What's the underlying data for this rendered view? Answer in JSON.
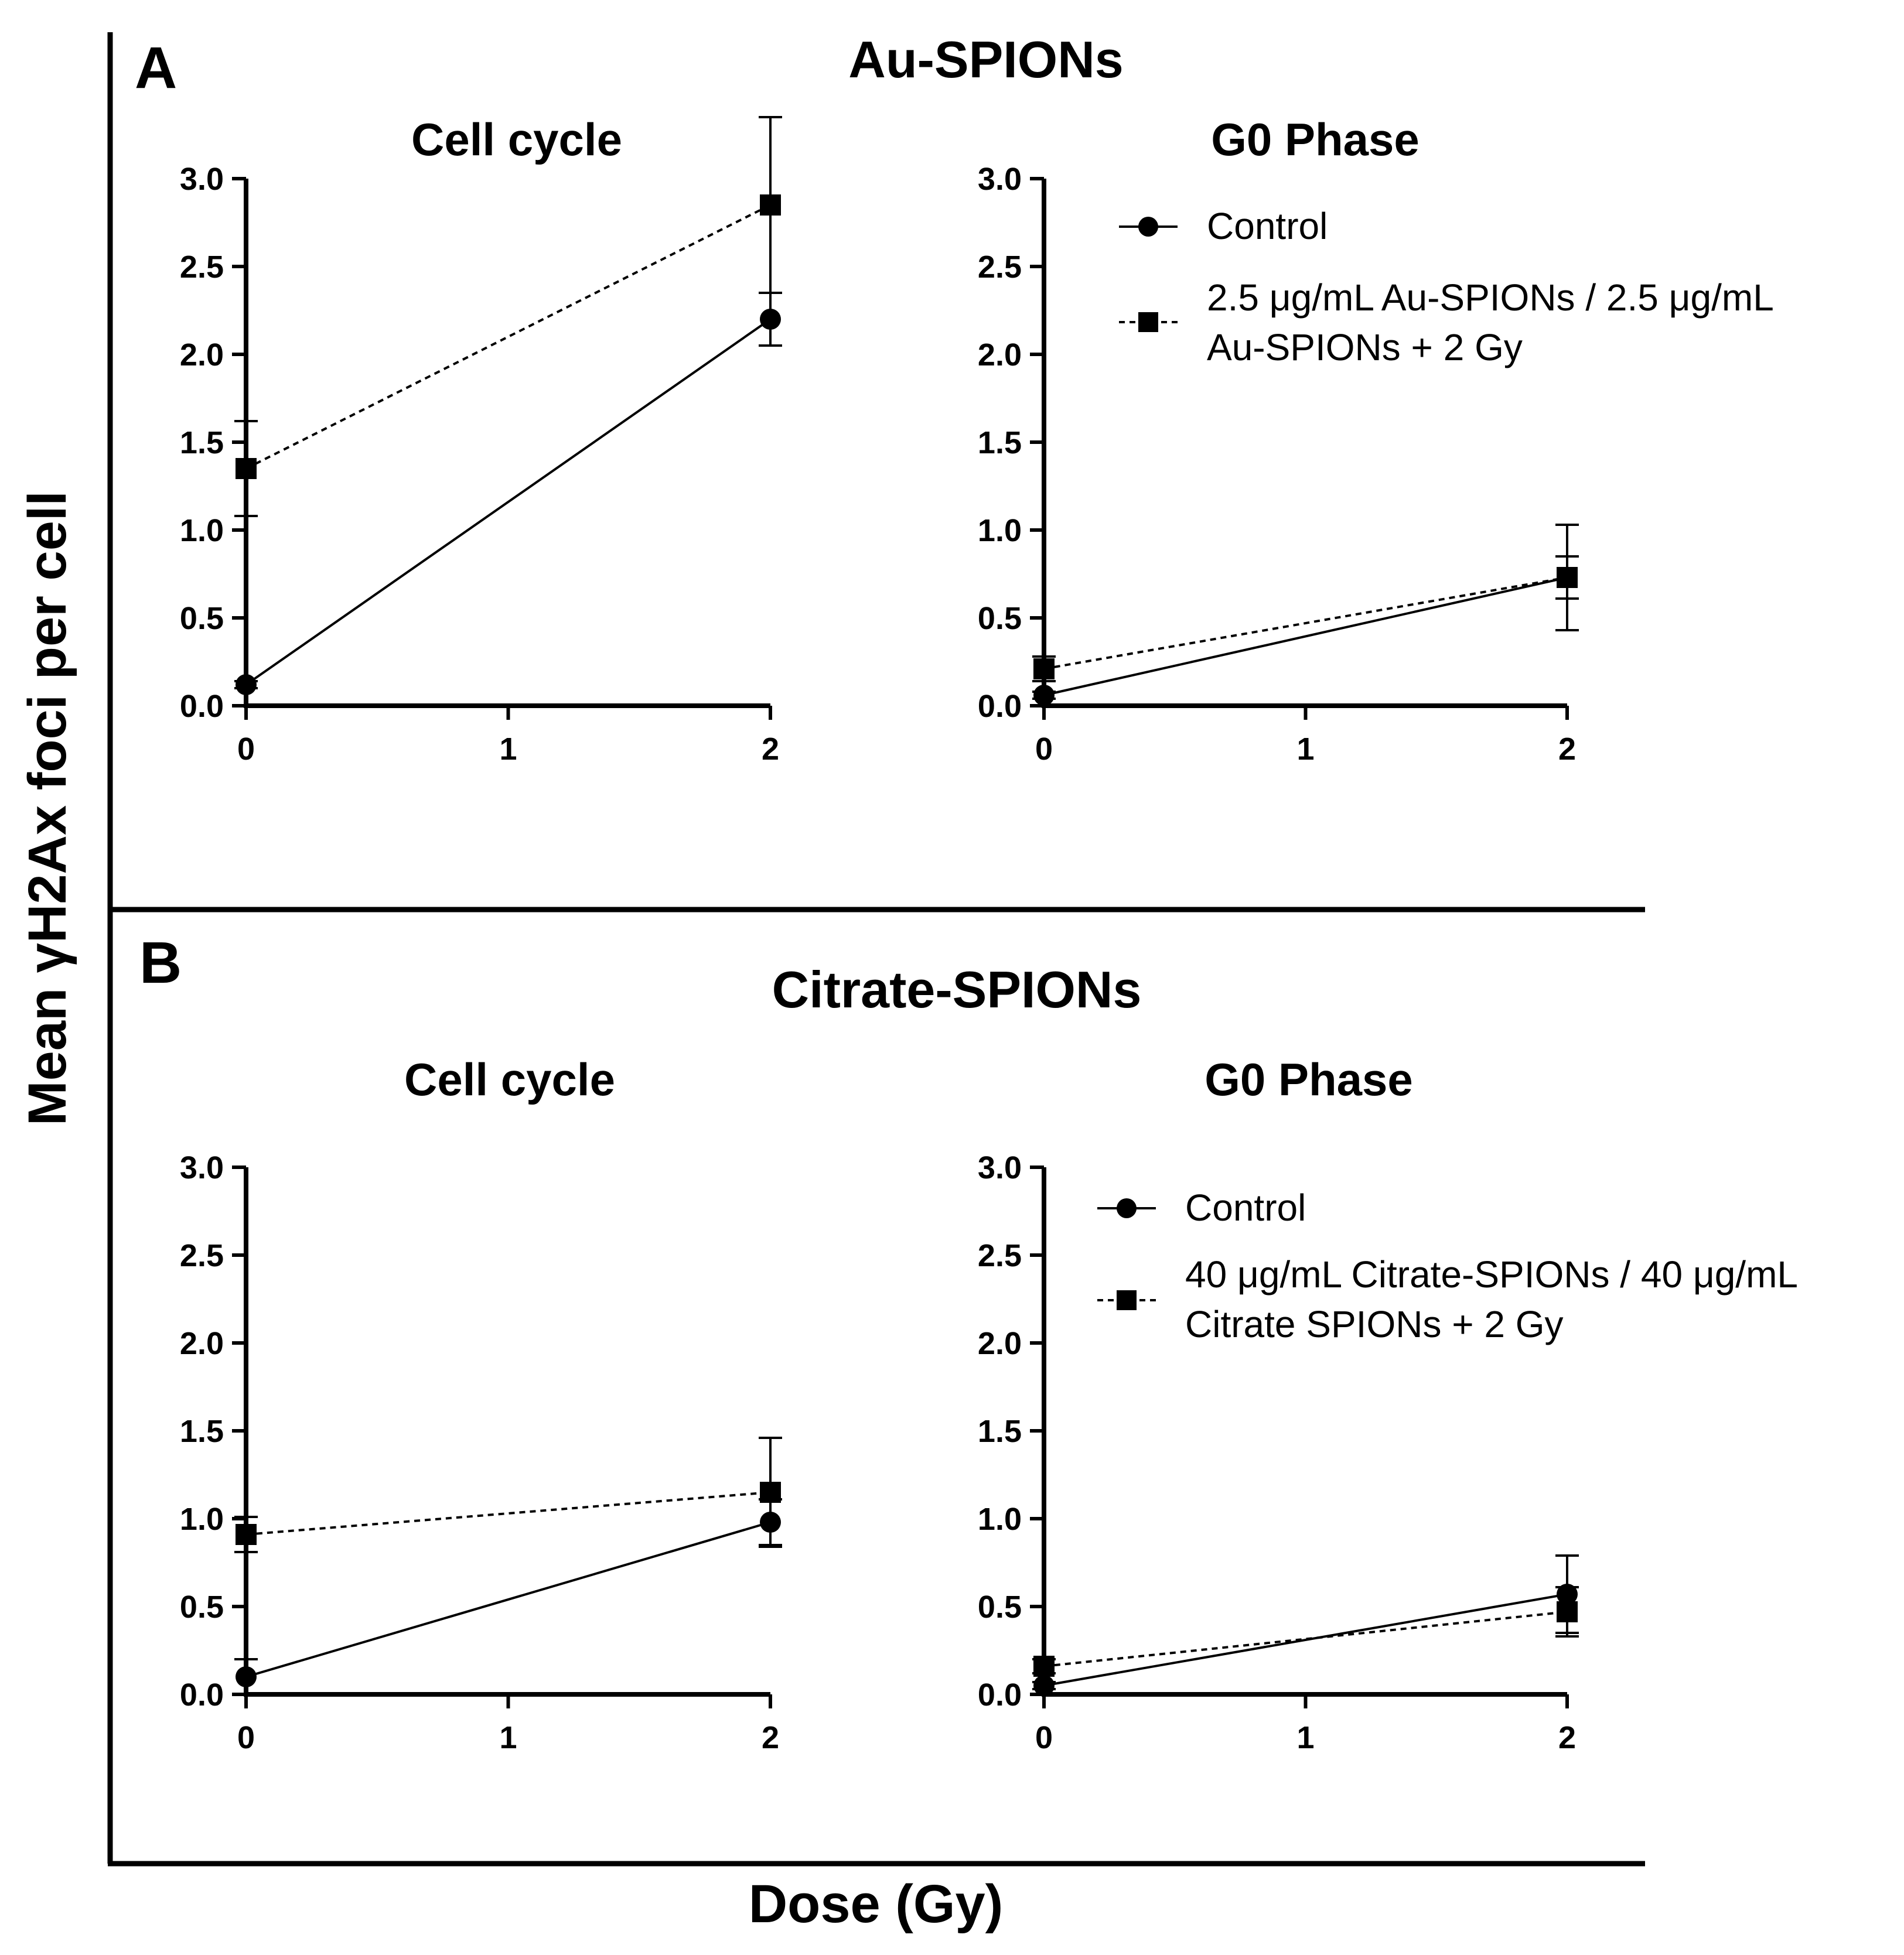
{
  "figure": {
    "y_axis_label": "Mean γH2Ax foci per cell",
    "x_axis_label": "Dose (Gy)"
  },
  "sections": [
    {
      "letter": "A",
      "title": "Au-SPIONs",
      "legend": {
        "control_label": "Control",
        "treated_label_line1": "2.5 μg/mL Au-SPIONs / 2.5 μg/mL",
        "treated_label_line2": "Au-SPIONs + 2 Gy"
      }
    },
    {
      "letter": "B",
      "title": "Citrate-SPIONs",
      "legend": {
        "control_label": "Control",
        "treated_label_line1": "40 μg/mL Citrate-SPIONs / 40 μg/mL",
        "treated_label_line2": "Citrate SPIONs + 2 Gy"
      }
    }
  ],
  "chart_data": [
    {
      "type": "line",
      "section": "A",
      "title": "Cell cycle",
      "x": [
        0,
        2
      ],
      "xticks": [
        "0",
        "1",
        "2"
      ],
      "yticks": [
        "0.0",
        "0.5",
        "1.0",
        "1.5",
        "2.0",
        "2.5",
        "3.0"
      ],
      "xlim": [
        0,
        2
      ],
      "ylim": [
        0,
        3
      ],
      "series": [
        {
          "name": "Control",
          "marker": "circle",
          "dash": "solid",
          "values": [
            0.12,
            2.2
          ],
          "errors": [
            0.02,
            0.15
          ]
        },
        {
          "name": "2.5 μg/mL Au-SPIONs / 2.5 μg/mL Au-SPIONs + 2 Gy",
          "marker": "square",
          "dash": "dashed",
          "values": [
            1.35,
            2.85
          ],
          "errors": [
            0.27,
            0.5
          ]
        }
      ]
    },
    {
      "type": "line",
      "section": "A",
      "title": "G0 Phase",
      "x": [
        0,
        2
      ],
      "xticks": [
        "0",
        "1",
        "2"
      ],
      "yticks": [
        "0.0",
        "0.5",
        "1.0",
        "1.5",
        "2.0",
        "2.5",
        "3.0"
      ],
      "xlim": [
        0,
        2
      ],
      "ylim": [
        0,
        3
      ],
      "series": [
        {
          "name": "Control",
          "marker": "circle",
          "dash": "solid",
          "values": [
            0.06,
            0.73
          ],
          "errors": [
            0.02,
            0.3
          ]
        },
        {
          "name": "2.5 μg/mL Au-SPIONs / 2.5 μg/mL Au-SPIONs + 2 Gy",
          "marker": "square",
          "dash": "dashed",
          "values": [
            0.21,
            0.73
          ],
          "errors": [
            0.07,
            0.12
          ]
        }
      ]
    },
    {
      "type": "line",
      "section": "B",
      "title": "Cell cycle",
      "x": [
        0,
        2
      ],
      "xticks": [
        "0",
        "1",
        "2"
      ],
      "yticks": [
        "0.0",
        "0.5",
        "1.0",
        "1.5",
        "2.0",
        "2.5",
        "3.0"
      ],
      "xlim": [
        0,
        2
      ],
      "ylim": [
        0,
        3
      ],
      "series": [
        {
          "name": "Control",
          "marker": "circle",
          "dash": "solid",
          "values": [
            0.1,
            0.98
          ],
          "errors": [
            0.1,
            0.13
          ]
        },
        {
          "name": "40 μg/mL Citrate-SPIONs / 40 μg/mL Citrate SPIONs + 2 Gy",
          "marker": "square",
          "dash": "dashed",
          "values": [
            0.91,
            1.15
          ],
          "errors": [
            0.1,
            0.31
          ]
        }
      ]
    },
    {
      "type": "line",
      "section": "B",
      "title": "G0 Phase",
      "x": [
        0,
        2
      ],
      "xticks": [
        "0",
        "1",
        "2"
      ],
      "yticks": [
        "0.0",
        "0.5",
        "1.0",
        "1.5",
        "2.0",
        "2.5",
        "3.0"
      ],
      "xlim": [
        0,
        2
      ],
      "ylim": [
        0,
        3
      ],
      "series": [
        {
          "name": "Control",
          "marker": "circle",
          "dash": "solid",
          "values": [
            0.05,
            0.57
          ],
          "errors": [
            0.02,
            0.22
          ]
        },
        {
          "name": "40 μg/mL Citrate-SPIONs / 40 μg/mL Citrate SPIONs + 2 Gy",
          "marker": "square",
          "dash": "dashed",
          "values": [
            0.16,
            0.47
          ],
          "errors": [
            0.04,
            0.14
          ]
        }
      ]
    }
  ]
}
